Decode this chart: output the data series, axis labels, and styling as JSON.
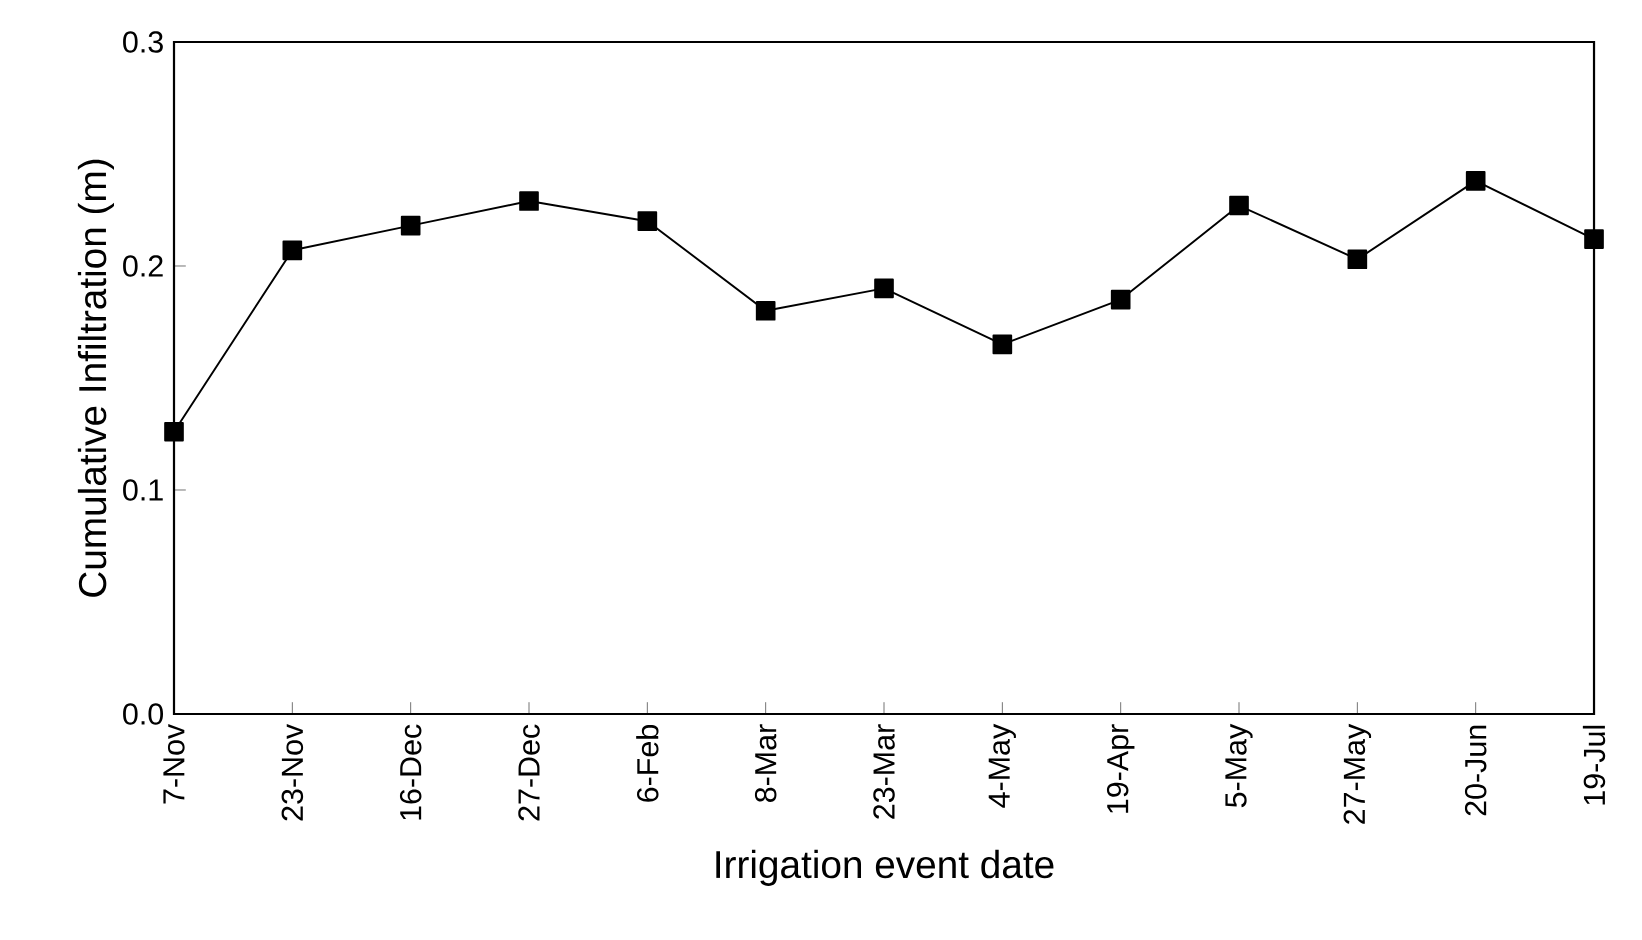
{
  "chart_data": {
    "type": "line",
    "xlabel": "Irrigation event date",
    "ylabel": "Cumulative Infiltration (m)",
    "categories": [
      "7-Nov",
      "23-Nov",
      "16-Dec",
      "27-Dec",
      "6-Feb",
      "8-Mar",
      "23-Mar",
      "4-May",
      "19-Apr",
      "5-May",
      "27-May",
      "20-Jun",
      "19-Jul"
    ],
    "series": [
      {
        "color": "#000000",
        "values": [
          0.126,
          0.207,
          0.218,
          0.229,
          0.22,
          0.18,
          0.19,
          0.165,
          0.185,
          0.227,
          0.203,
          0.238,
          0.212
        ]
      }
    ],
    "ylim": [
      0,
      0.3
    ],
    "yticks": [
      {
        "value": 0,
        "label": "0.0"
      },
      {
        "value": 0.1,
        "label": "0.1"
      },
      {
        "value": 0.2,
        "label": "0.2"
      },
      {
        "value": 0.3,
        "label": "0.3"
      }
    ],
    "marker": "square",
    "line_style": "solid"
  }
}
